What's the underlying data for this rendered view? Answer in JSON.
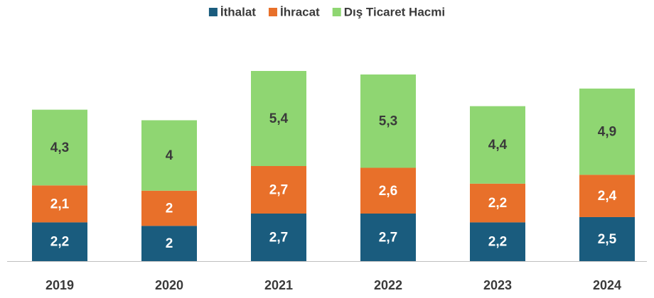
{
  "chart_data": {
    "type": "stacked_bar",
    "categories": [
      "2019",
      "2020",
      "2021",
      "2022",
      "2023",
      "2024"
    ],
    "series": [
      {
        "name": "İthalat",
        "color": "#1a5c7e",
        "values": [
          2.2,
          2,
          2.7,
          2.7,
          2.2,
          2.5
        ],
        "value_labels": [
          "2,2",
          "2",
          "2,7",
          "2,7",
          "2,2",
          "2,5"
        ]
      },
      {
        "name": "İhracat",
        "color": "#e8702a",
        "values": [
          2.1,
          2,
          2.7,
          2.6,
          2.2,
          2.4
        ],
        "value_labels": [
          "2,1",
          "2",
          "2,7",
          "2,6",
          "2,2",
          "2,4"
        ]
      },
      {
        "name": "Dış Ticaret Hacmi",
        "color": "#8fd672",
        "values": [
          4.3,
          4,
          5.4,
          5.3,
          4.4,
          4.9
        ],
        "value_labels": [
          "4,3",
          "4",
          "5,4",
          "5,3",
          "4,4",
          "4,9"
        ]
      }
    ],
    "legend": "top"
  }
}
